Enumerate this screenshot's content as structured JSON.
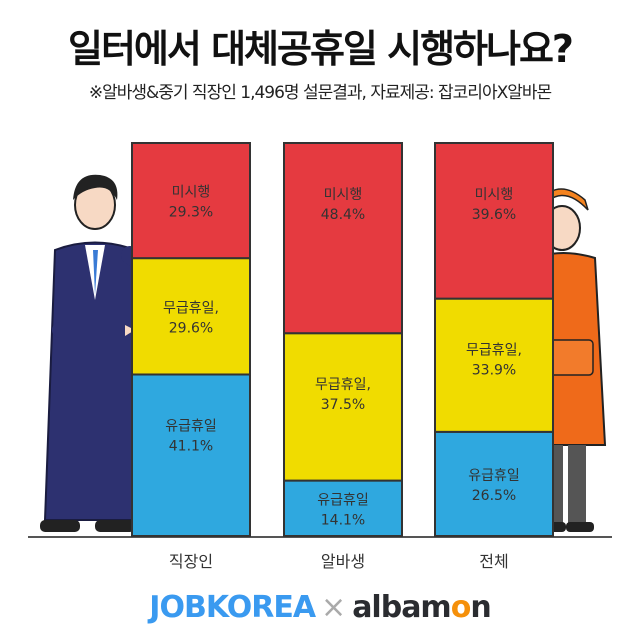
{
  "header": {
    "title": "일터에서 대체공휴일 시행하나요?",
    "subtitle": "※알바생&중기 직장인 1,496명 설문결과, 자료제공: 잡코리아X알바몬"
  },
  "chart_data": {
    "type": "bar",
    "stacked": true,
    "orientation": "vertical",
    "categories": [
      "직장인",
      "알바생",
      "전체"
    ],
    "series": [
      {
        "name": "유급휴일",
        "values": [
          41.1,
          14.1,
          26.5
        ],
        "color": "#2fa8df"
      },
      {
        "name": "무급휴일,",
        "values": [
          29.6,
          37.5,
          33.9
        ],
        "color": "#f0dc00"
      },
      {
        "name": "미시행",
        "values": [
          29.3,
          48.4,
          39.6
        ],
        "color": "#e53a40"
      }
    ],
    "value_suffix": "%",
    "ylim": [
      0,
      100
    ],
    "grid": false,
    "legend": "none"
  },
  "footer": {
    "logo_left": "JOBKOREA",
    "separator": "×",
    "logo_right_a": "albam",
    "logo_right_o": "o",
    "logo_right_b": "n"
  }
}
